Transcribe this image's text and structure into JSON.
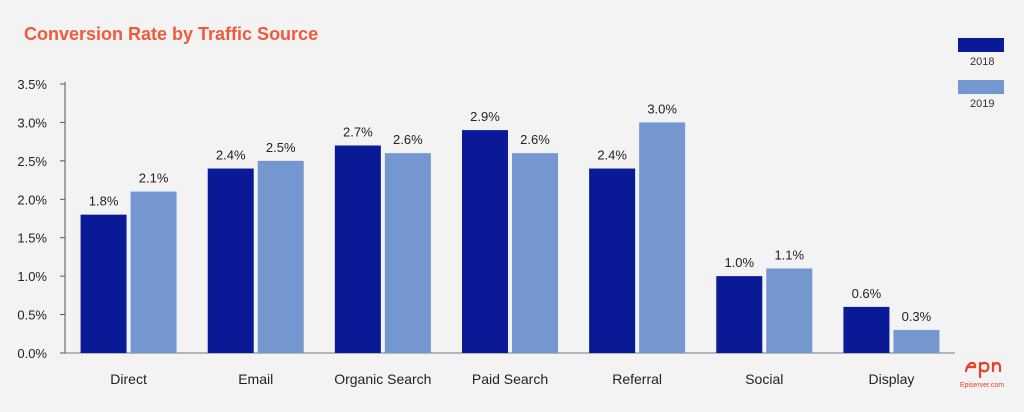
{
  "chart_data": {
    "type": "bar",
    "title": "Conversion Rate by Traffic Source",
    "categories": [
      "Direct",
      "Email",
      "Organic Search",
      "Paid Search",
      "Referral",
      "Social",
      "Display"
    ],
    "series": [
      {
        "name": "2018",
        "values": [
          1.8,
          2.4,
          2.7,
          2.9,
          2.4,
          1.0,
          0.6
        ],
        "labels": [
          "1.8%",
          "2.4%",
          "2.7%",
          "2.9%",
          "2.4%",
          "1.0%",
          "0.6%"
        ]
      },
      {
        "name": "2019",
        "values": [
          2.1,
          2.5,
          2.6,
          2.6,
          3.0,
          1.1,
          0.3
        ],
        "labels": [
          "2.1%",
          "2.5%",
          "2.6%",
          "2.6%",
          "3.0%",
          "1.1%",
          "0.3%"
        ]
      }
    ],
    "yticks": [
      "0.0%",
      "0.5%",
      "1.0%",
      "1.5%",
      "2.0%",
      "2.5%",
      "3.0%",
      "3.5%"
    ],
    "ylim": [
      0,
      3.5
    ],
    "grid": false,
    "legend": "top-right",
    "colors": {
      "2018": "#0a1a96",
      "2019": "#7597cf",
      "title": "#f05a3a"
    }
  },
  "brand": {
    "logo": "epi",
    "caption": "Episerver.com"
  }
}
